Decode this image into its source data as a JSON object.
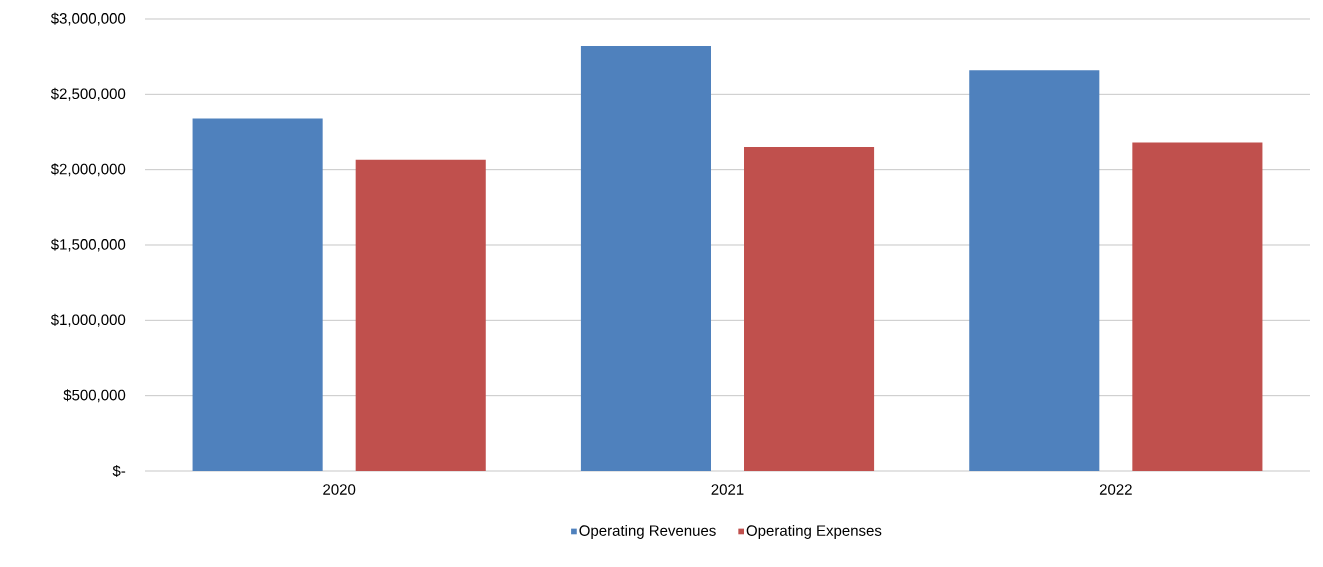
{
  "chart_data": {
    "type": "bar",
    "categories": [
      "2020",
      "2021",
      "2022"
    ],
    "series": [
      {
        "name": "Operating Revenues",
        "color": "#4f81bd",
        "values": [
          2340000,
          2820000,
          2660000
        ]
      },
      {
        "name": "Operating Expenses",
        "color": "#c0504d",
        "values": [
          2065000,
          2150000,
          2180000
        ]
      }
    ],
    "ylim": [
      0,
      3000000
    ],
    "yticks": [
      {
        "value": 0,
        "label": "$-"
      },
      {
        "value": 500000,
        "label": "$500,000"
      },
      {
        "value": 1000000,
        "label": "$1,000,000"
      },
      {
        "value": 1500000,
        "label": "$1,500,000"
      },
      {
        "value": 2000000,
        "label": "$2,000,000"
      },
      {
        "value": 2500000,
        "label": "$2,500,000"
      },
      {
        "value": 3000000,
        "label": "$3,000,000"
      }
    ],
    "grid": "y",
    "legend": "bottom"
  }
}
